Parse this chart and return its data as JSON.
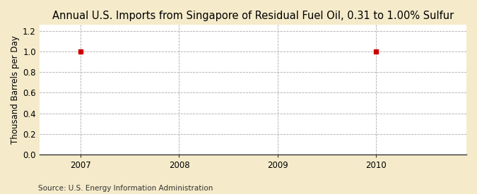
{
  "title": "Annual U.S. Imports from Singapore of Residual Fuel Oil, 0.31 to 1.00% Sulfur",
  "ylabel": "Thousand Barrels per Day",
  "source": "Source: U.S. Energy Information Administration",
  "x_data": [
    2007,
    2010
  ],
  "y_data": [
    1.0,
    1.0
  ],
  "xlim": [
    2006.58,
    2010.92
  ],
  "ylim": [
    0.0,
    1.26
  ],
  "yticks": [
    0.0,
    0.2,
    0.4,
    0.6,
    0.8,
    1.0,
    1.2
  ],
  "xticks": [
    2007,
    2008,
    2009,
    2010
  ],
  "outer_bg_color": "#F5EBCA",
  "plot_bg_color": "#FFFFFF",
  "grid_color": "#AAAAAA",
  "marker_color": "#CC0000",
  "marker_size": 4,
  "title_fontsize": 10.5,
  "label_fontsize": 8.5,
  "tick_fontsize": 8.5,
  "source_fontsize": 7.5
}
